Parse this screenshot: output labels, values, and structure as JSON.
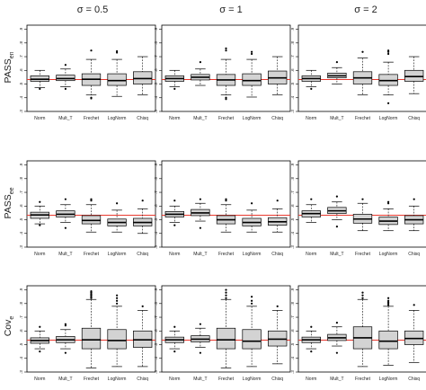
{
  "figure": {
    "column_headers": [
      "σ = 0.5",
      "σ = 1",
      "σ = 2"
    ],
    "row_labels": [
      {
        "main": "PASS",
        "sub": "en"
      },
      {
        "main": "PASS",
        "sub": "ee"
      },
      {
        "main": "Cov",
        "sub": "e"
      }
    ]
  },
  "colors": {
    "box_fill": "#d3d3d3",
    "reference_line": "#e8392f",
    "median": "#000000"
  },
  "chart_data": [
    {
      "type": "box",
      "title": "σ = 0.5",
      "ylabel": "PASS_en",
      "categories": [
        "Norm",
        "Mult_T",
        "Frechet",
        "LogNorm",
        "Chisq"
      ],
      "yticks": [
        0.3,
        0.4,
        0.5,
        0.6,
        0.7,
        0.8,
        0.9
      ],
      "ylim": [
        0.3,
        0.93
      ],
      "reference_line": 0.533,
      "series": [
        {
          "name": "Norm",
          "stats": {
            "whislo": 0.475,
            "q1": 0.52,
            "med": 0.535,
            "q3": 0.56,
            "whishi": 0.6,
            "outliers": [
              0.465
            ]
          }
        },
        {
          "name": "Mult_T",
          "stats": {
            "whislo": 0.48,
            "q1": 0.525,
            "med": 0.54,
            "q3": 0.565,
            "whishi": 0.61,
            "outliers": [
              0.465,
              0.64
            ]
          }
        },
        {
          "name": "Frechet",
          "stats": {
            "whislo": 0.42,
            "q1": 0.49,
            "med": 0.535,
            "q3": 0.575,
            "whishi": 0.68,
            "outliers": [
              0.4,
              0.395,
              0.745
            ]
          }
        },
        {
          "name": "LogNorm",
          "stats": {
            "whislo": 0.41,
            "q1": 0.49,
            "med": 0.525,
            "q3": 0.575,
            "whishi": 0.68,
            "outliers": [
              0.73,
              0.74
            ]
          }
        },
        {
          "name": "Chisq",
          "stats": {
            "whislo": 0.42,
            "q1": 0.5,
            "med": 0.54,
            "q3": 0.59,
            "whishi": 0.7,
            "outliers": []
          }
        }
      ]
    },
    {
      "type": "box",
      "title": "σ = 1",
      "ylabel": "PASS_en",
      "categories": [
        "Norm",
        "Mult_T",
        "Frechet",
        "LogNorm",
        "Chisq"
      ],
      "yticks": [
        0.3,
        0.4,
        0.5,
        0.6,
        0.7,
        0.8,
        0.9
      ],
      "ylim": [
        0.3,
        0.93
      ],
      "reference_line": 0.533,
      "series": [
        {
          "name": "Norm",
          "stats": {
            "whislo": 0.48,
            "q1": 0.52,
            "med": 0.54,
            "q3": 0.56,
            "whishi": 0.6,
            "outliers": [
              0.465
            ]
          }
        },
        {
          "name": "Mult_T",
          "stats": {
            "whislo": 0.49,
            "q1": 0.53,
            "med": 0.55,
            "q3": 0.57,
            "whishi": 0.61,
            "outliers": [
              0.66
            ]
          }
        },
        {
          "name": "Frechet",
          "stats": {
            "whislo": 0.42,
            "q1": 0.49,
            "med": 0.53,
            "q3": 0.57,
            "whishi": 0.68,
            "outliers": [
              0.4,
              0.39,
              0.745,
              0.76
            ]
          }
        },
        {
          "name": "LogNorm",
          "stats": {
            "whislo": 0.405,
            "q1": 0.49,
            "med": 0.525,
            "q3": 0.575,
            "whishi": 0.68,
            "outliers": [
              0.72,
              0.735
            ]
          }
        },
        {
          "name": "Chisq",
          "stats": {
            "whislo": 0.42,
            "q1": 0.5,
            "med": 0.545,
            "q3": 0.595,
            "whishi": 0.7,
            "outliers": []
          }
        }
      ]
    },
    {
      "type": "box",
      "title": "σ = 2",
      "ylabel": "PASS_en",
      "categories": [
        "Norm",
        "Mult_T",
        "Frechet",
        "LogNorm",
        "Chisq"
      ],
      "yticks": [
        0.3,
        0.4,
        0.5,
        0.6,
        0.7,
        0.8,
        0.9
      ],
      "ylim": [
        0.3,
        0.93
      ],
      "reference_line": 0.533,
      "series": [
        {
          "name": "Norm",
          "stats": {
            "whislo": 0.48,
            "q1": 0.52,
            "med": 0.54,
            "q3": 0.56,
            "whishi": 0.6,
            "outliers": [
              0.465
            ]
          }
        },
        {
          "name": "Mult_T",
          "stats": {
            "whislo": 0.5,
            "q1": 0.545,
            "med": 0.56,
            "q3": 0.58,
            "whishi": 0.62,
            "outliers": [
              0.66
            ]
          }
        },
        {
          "name": "Frechet",
          "stats": {
            "whislo": 0.42,
            "q1": 0.5,
            "med": 0.545,
            "q3": 0.59,
            "whishi": 0.69,
            "outliers": [
              0.735
            ]
          }
        },
        {
          "name": "LogNorm",
          "stats": {
            "whislo": 0.42,
            "q1": 0.49,
            "med": 0.525,
            "q3": 0.57,
            "whishi": 0.66,
            "outliers": [
              0.36,
              0.72,
              0.735,
              0.745
            ]
          }
        },
        {
          "name": "Chisq",
          "stats": {
            "whislo": 0.43,
            "q1": 0.52,
            "med": 0.555,
            "q3": 0.6,
            "whishi": 0.7,
            "outliers": []
          }
        }
      ]
    },
    {
      "type": "box",
      "title": "",
      "ylabel": "PASS_ee",
      "categories": [
        "Norm",
        "Mult_T",
        "Frechet",
        "LogNorm",
        "Chisq"
      ],
      "yticks": [
        0.3,
        0.4,
        0.5,
        0.6,
        0.7,
        0.8,
        0.9
      ],
      "ylim": [
        0.3,
        0.93
      ],
      "reference_line": 0.533,
      "series": [
        {
          "name": "Norm",
          "stats": {
            "whislo": 0.47,
            "q1": 0.51,
            "med": 0.535,
            "q3": 0.555,
            "whishi": 0.6,
            "outliers": [
              0.46,
              0.63
            ]
          }
        },
        {
          "name": "Mult_T",
          "stats": {
            "whislo": 0.48,
            "q1": 0.52,
            "med": 0.54,
            "q3": 0.565,
            "whishi": 0.61,
            "outliers": [
              0.44,
              0.65
            ]
          }
        },
        {
          "name": "Frechet",
          "stats": {
            "whislo": 0.41,
            "q1": 0.47,
            "med": 0.495,
            "q3": 0.53,
            "whishi": 0.61,
            "outliers": [
              0.64,
              0.65
            ]
          }
        },
        {
          "name": "LogNorm",
          "stats": {
            "whislo": 0.41,
            "q1": 0.455,
            "med": 0.48,
            "q3": 0.505,
            "whishi": 0.57,
            "outliers": [
              0.62
            ]
          }
        },
        {
          "name": "Chisq",
          "stats": {
            "whislo": 0.4,
            "q1": 0.455,
            "med": 0.48,
            "q3": 0.51,
            "whishi": 0.58,
            "outliers": [
              0.64
            ]
          }
        }
      ]
    },
    {
      "type": "box",
      "title": "",
      "ylabel": "PASS_ee",
      "categories": [
        "Norm",
        "Mult_T",
        "Frechet",
        "LogNorm",
        "Chisq"
      ],
      "yticks": [
        0.3,
        0.4,
        0.5,
        0.6,
        0.7,
        0.8,
        0.9
      ],
      "ylim": [
        0.3,
        0.93
      ],
      "reference_line": 0.533,
      "series": [
        {
          "name": "Norm",
          "stats": {
            "whislo": 0.48,
            "q1": 0.52,
            "med": 0.54,
            "q3": 0.56,
            "whishi": 0.6,
            "outliers": [
              0.46,
              0.64
            ]
          }
        },
        {
          "name": "Mult_T",
          "stats": {
            "whislo": 0.49,
            "q1": 0.53,
            "med": 0.55,
            "q3": 0.575,
            "whishi": 0.62,
            "outliers": [
              0.44,
              0.65
            ]
          }
        },
        {
          "name": "Frechet",
          "stats": {
            "whislo": 0.41,
            "q1": 0.47,
            "med": 0.5,
            "q3": 0.53,
            "whishi": 0.61,
            "outliers": [
              0.64,
              0.65
            ]
          }
        },
        {
          "name": "LogNorm",
          "stats": {
            "whislo": 0.41,
            "q1": 0.455,
            "med": 0.48,
            "q3": 0.51,
            "whishi": 0.57,
            "outliers": [
              0.62
            ]
          }
        },
        {
          "name": "Chisq",
          "stats": {
            "whislo": 0.41,
            "q1": 0.46,
            "med": 0.485,
            "q3": 0.515,
            "whishi": 0.58,
            "outliers": [
              0.64
            ]
          }
        }
      ]
    },
    {
      "type": "box",
      "title": "",
      "ylabel": "PASS_ee",
      "categories": [
        "Norm",
        "Mult_T",
        "Frechet",
        "LogNorm",
        "Chisq"
      ],
      "yticks": [
        0.3,
        0.4,
        0.5,
        0.6,
        0.7,
        0.8,
        0.9
      ],
      "ylim": [
        0.3,
        0.93
      ],
      "reference_line": 0.533,
      "series": [
        {
          "name": "Norm",
          "stats": {
            "whislo": 0.48,
            "q1": 0.52,
            "med": 0.545,
            "q3": 0.565,
            "whishi": 0.61,
            "outliers": [
              0.65
            ]
          }
        },
        {
          "name": "Mult_T",
          "stats": {
            "whislo": 0.5,
            "q1": 0.545,
            "med": 0.565,
            "q3": 0.59,
            "whishi": 0.63,
            "outliers": [
              0.45,
              0.67
            ]
          }
        },
        {
          "name": "Frechet",
          "stats": {
            "whislo": 0.42,
            "q1": 0.475,
            "med": 0.505,
            "q3": 0.54,
            "whishi": 0.62,
            "outliers": [
              0.65
            ]
          }
        },
        {
          "name": "LogNorm",
          "stats": {
            "whislo": 0.42,
            "q1": 0.465,
            "med": 0.49,
            "q3": 0.52,
            "whishi": 0.58,
            "outliers": [
              0.62,
              0.63
            ]
          }
        },
        {
          "name": "Chisq",
          "stats": {
            "whislo": 0.42,
            "q1": 0.47,
            "med": 0.5,
            "q3": 0.53,
            "whishi": 0.6,
            "outliers": [
              0.65
            ]
          }
        }
      ]
    },
    {
      "type": "box",
      "title": "",
      "ylabel": "Cov_e",
      "categories": [
        "Norm",
        "Mult_T",
        "Frechet",
        "LogNorm",
        "Chisq"
      ],
      "yticks": [
        0.3,
        0.4,
        0.5,
        0.6,
        0.7,
        0.8,
        0.9
      ],
      "ylim": [
        0.3,
        0.93
      ],
      "reference_line": 0.533,
      "series": [
        {
          "name": "Norm",
          "stats": {
            "whislo": 0.47,
            "q1": 0.51,
            "med": 0.53,
            "q3": 0.55,
            "whishi": 0.6,
            "outliers": [
              0.45,
              0.63
            ]
          }
        },
        {
          "name": "Mult_T",
          "stats": {
            "whislo": 0.47,
            "q1": 0.515,
            "med": 0.535,
            "q3": 0.56,
            "whishi": 0.61,
            "outliers": [
              0.44,
              0.64,
              0.65
            ]
          }
        },
        {
          "name": "Frechet",
          "stats": {
            "whislo": 0.33,
            "q1": 0.47,
            "med": 0.535,
            "q3": 0.62,
            "whishi": 0.83,
            "outliers": [
              0.84,
              0.85,
              0.86,
              0.87,
              0.88,
              0.89
            ]
          }
        },
        {
          "name": "LogNorm",
          "stats": {
            "whislo": 0.34,
            "q1": 0.47,
            "med": 0.53,
            "q3": 0.61,
            "whishi": 0.78,
            "outliers": [
              0.8,
              0.82,
              0.84,
              0.86
            ]
          }
        },
        {
          "name": "Chisq",
          "stats": {
            "whislo": 0.34,
            "q1": 0.48,
            "med": 0.535,
            "q3": 0.6,
            "whishi": 0.75,
            "outliers": [
              0.78
            ]
          }
        }
      ]
    },
    {
      "type": "box",
      "title": "",
      "ylabel": "Cov_e",
      "categories": [
        "Norm",
        "Mult_T",
        "Frechet",
        "LogNorm",
        "Chisq"
      ],
      "yticks": [
        0.3,
        0.4,
        0.5,
        0.6,
        0.7,
        0.8,
        0.9
      ],
      "ylim": [
        0.3,
        0.93
      ],
      "reference_line": 0.533,
      "series": [
        {
          "name": "Norm",
          "stats": {
            "whislo": 0.47,
            "q1": 0.515,
            "med": 0.535,
            "q3": 0.555,
            "whishi": 0.6,
            "outliers": [
              0.45,
              0.63
            ]
          }
        },
        {
          "name": "Mult_T",
          "stats": {
            "whislo": 0.48,
            "q1": 0.52,
            "med": 0.54,
            "q3": 0.565,
            "whishi": 0.62,
            "outliers": [
              0.44,
              0.65
            ]
          }
        },
        {
          "name": "Frechet",
          "stats": {
            "whislo": 0.33,
            "q1": 0.47,
            "med": 0.535,
            "q3": 0.62,
            "whishi": 0.83,
            "outliers": [
              0.84,
              0.86,
              0.88,
              0.9
            ]
          }
        },
        {
          "name": "LogNorm",
          "stats": {
            "whislo": 0.34,
            "q1": 0.47,
            "med": 0.525,
            "q3": 0.61,
            "whishi": 0.78,
            "outliers": [
              0.8,
              0.82,
              0.85
            ]
          }
        },
        {
          "name": "Chisq",
          "stats": {
            "whislo": 0.36,
            "q1": 0.49,
            "med": 0.54,
            "q3": 0.6,
            "whishi": 0.75,
            "outliers": [
              0.78
            ]
          }
        }
      ]
    },
    {
      "type": "box",
      "title": "",
      "ylabel": "Cov_e",
      "categories": [
        "Norm",
        "Mult_T",
        "Frechet",
        "LogNorm",
        "Chisq"
      ],
      "yticks": [
        0.3,
        0.4,
        0.5,
        0.6,
        0.7,
        0.8,
        0.9
      ],
      "ylim": [
        0.3,
        0.93
      ],
      "reference_line": 0.533,
      "series": [
        {
          "name": "Norm",
          "stats": {
            "whislo": 0.47,
            "q1": 0.515,
            "med": 0.535,
            "q3": 0.555,
            "whishi": 0.6,
            "outliers": [
              0.45,
              0.63
            ]
          }
        },
        {
          "name": "Mult_T",
          "stats": {
            "whislo": 0.49,
            "q1": 0.53,
            "med": 0.55,
            "q3": 0.575,
            "whishi": 0.63,
            "outliers": [
              0.44,
              0.66
            ]
          }
        },
        {
          "name": "Frechet",
          "stats": {
            "whislo": 0.34,
            "q1": 0.47,
            "med": 0.55,
            "q3": 0.63,
            "whishi": 0.83,
            "outliers": [
              0.84,
              0.86,
              0.88
            ]
          }
        },
        {
          "name": "LogNorm",
          "stats": {
            "whislo": 0.35,
            "q1": 0.47,
            "med": 0.525,
            "q3": 0.6,
            "whishi": 0.78,
            "outliers": [
              0.79,
              0.8,
              0.81,
              0.82,
              0.84
            ]
          }
        },
        {
          "name": "Chisq",
          "stats": {
            "whislo": 0.37,
            "q1": 0.5,
            "med": 0.545,
            "q3": 0.6,
            "whishi": 0.75,
            "outliers": [
              0.79
            ]
          }
        }
      ]
    }
  ]
}
